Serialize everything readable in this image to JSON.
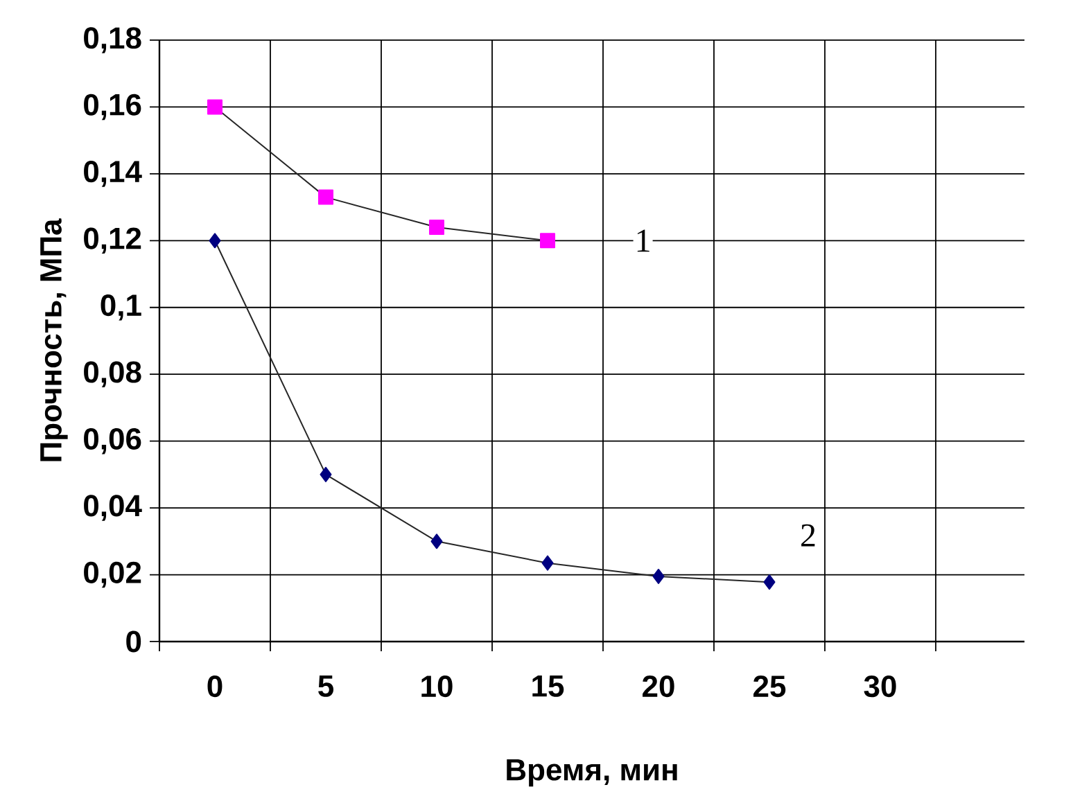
{
  "chart_data": {
    "type": "line",
    "xlabel": "Время, мин",
    "ylabel": "Прочность, МПа",
    "x": [
      0,
      5,
      10,
      15,
      20,
      25
    ],
    "series": [
      {
        "name": "1",
        "color": "#ff00ff",
        "marker": "square",
        "values": [
          0.16,
          0.133,
          0.124,
          0.12,
          null,
          null
        ]
      },
      {
        "name": "2",
        "color": "#000080",
        "marker": "diamond",
        "values": [
          0.12,
          0.05,
          0.03,
          0.0235,
          0.0195,
          0.0178
        ]
      }
    ],
    "xlim": [
      -2.5,
      36.5
    ],
    "ylim": [
      0,
      0.18
    ],
    "xticks": [
      0,
      5,
      10,
      15,
      20,
      25,
      30,
      {
        "value": -2.5,
        "label": null
      },
      {
        "value": 2.5,
        "label": null
      },
      {
        "value": 7.5,
        "label": null
      },
      {
        "value": 12.5,
        "label": null
      },
      {
        "value": 17.5,
        "label": null
      },
      {
        "value": 22.5,
        "label": null
      },
      {
        "value": 27.5,
        "label": null
      },
      {
        "value": 32.5,
        "label": null
      }
    ],
    "yticks": [
      0,
      {
        "value": 0.02,
        "label": "0,02"
      },
      {
        "value": 0.04,
        "label": "0,04"
      },
      {
        "value": 0.06,
        "label": "0,06"
      },
      {
        "value": 0.08,
        "label": "0,08"
      },
      {
        "value": 0.1,
        "label": "0,1"
      },
      {
        "value": 0.12,
        "label": "0,12"
      },
      {
        "value": 0.14,
        "label": "0,14"
      },
      {
        "value": 0.16,
        "label": "0,16"
      },
      {
        "value": 0.18,
        "label": "0,18"
      }
    ],
    "grid": true,
    "line_style": "solid"
  }
}
